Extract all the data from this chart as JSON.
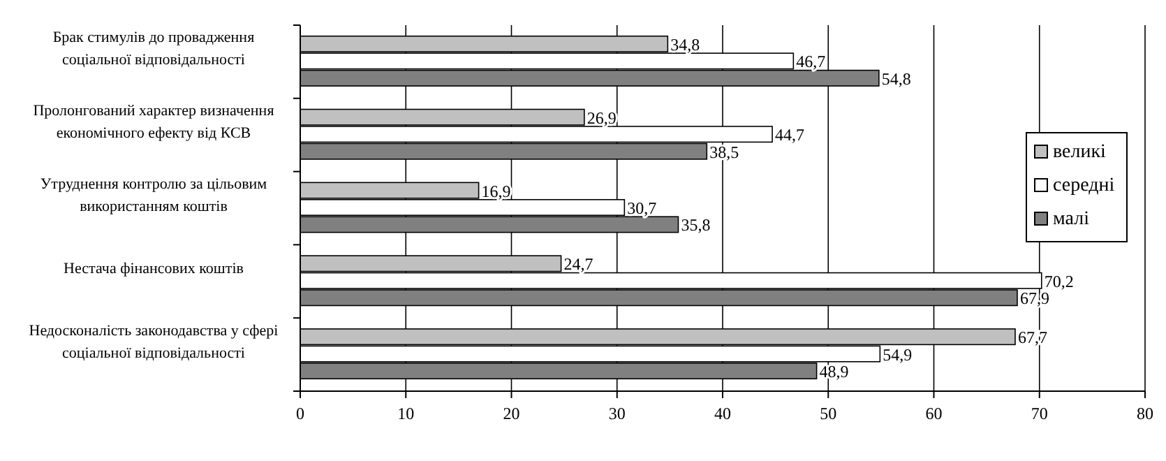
{
  "chart_data": {
    "type": "bar",
    "orientation": "horizontal",
    "categories": [
      "Брак стимулів до провадження соціальної відповідальності",
      "Пролонгований характер визначення економічного ефекту від КСВ",
      "Утруднення контролю за цільовим використанням коштів",
      "Нестача фінансових коштів",
      "Недосконалість  законодавства у сфері соціальної відповідальності"
    ],
    "series": [
      {
        "name": "великі",
        "color": "#c0c0c0",
        "values": [
          34.8,
          26.9,
          16.9,
          24.7,
          67.7
        ],
        "value_labels": [
          "34,8",
          "26,9",
          "16,9",
          "24,7",
          "67,7"
        ]
      },
      {
        "name": "середні",
        "color": "#ffffff",
        "values": [
          46.7,
          44.7,
          30.7,
          70.2,
          54.9
        ],
        "value_labels": [
          "46,7",
          "44,7",
          "30,7",
          "70,2",
          "54,9"
        ]
      },
      {
        "name": "малі",
        "color": "#808080",
        "values": [
          54.8,
          38.5,
          35.8,
          67.9,
          48.9
        ],
        "value_labels": [
          "54,8",
          "38,5",
          "35,8",
          "67,9",
          "48,9"
        ]
      }
    ],
    "xlim": [
      0,
      80
    ],
    "xticks": [
      0,
      10,
      20,
      30,
      40,
      50,
      60,
      70,
      80
    ],
    "grid": "x",
    "legend": "right"
  }
}
